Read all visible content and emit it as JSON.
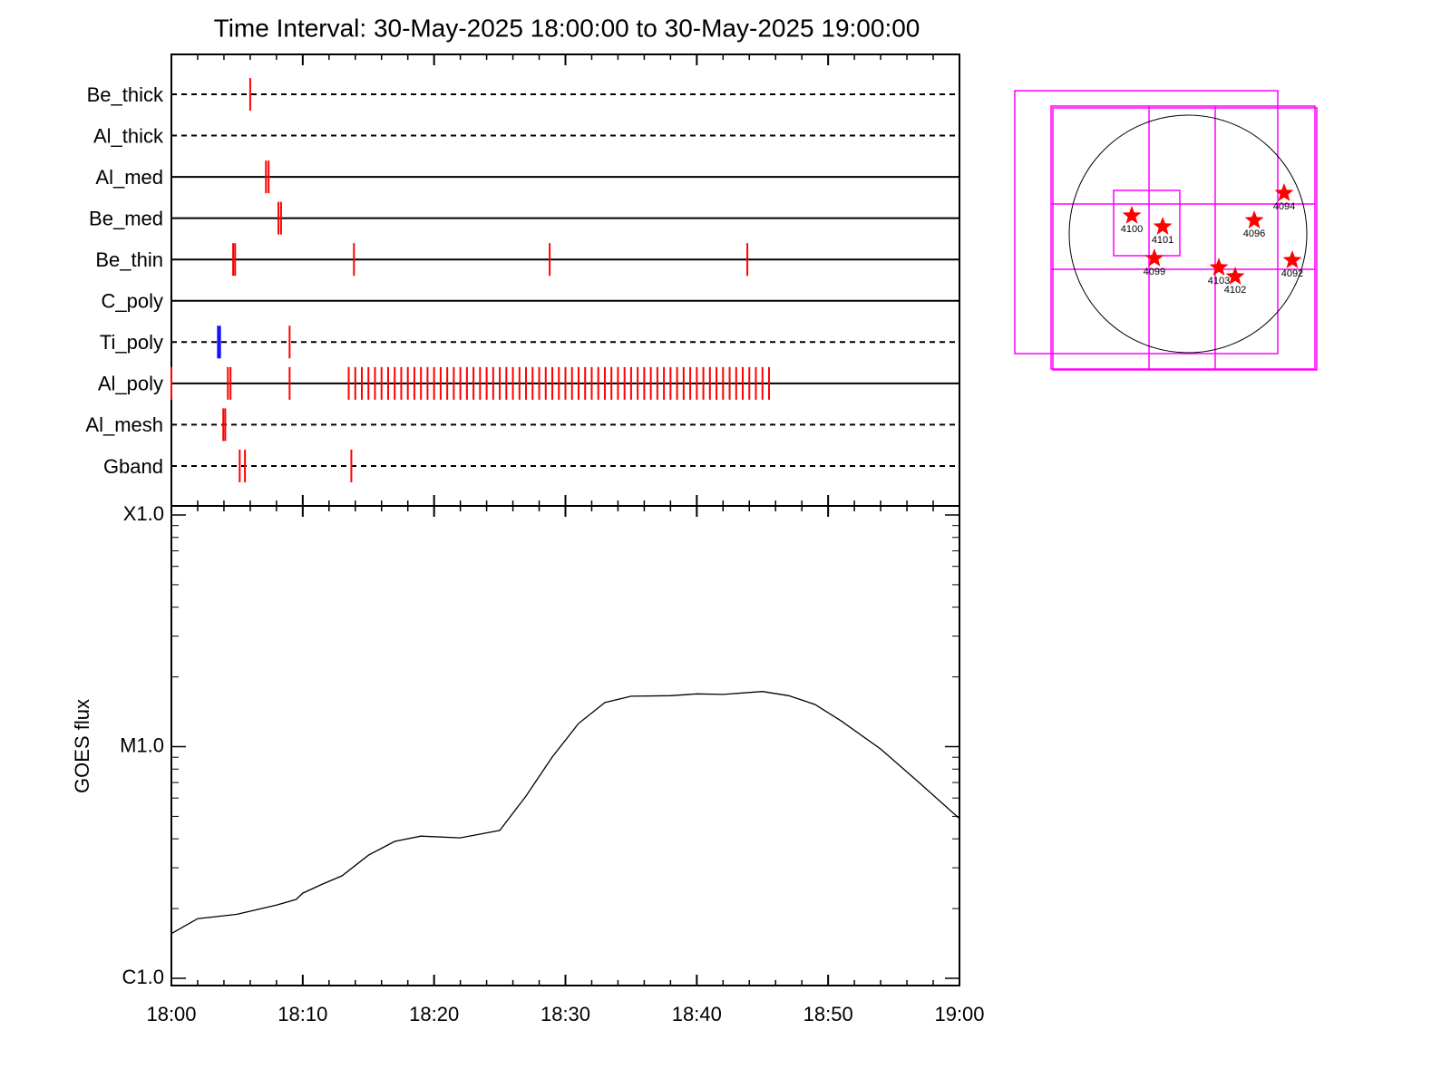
{
  "chart_data": [
    {
      "type": "timeline",
      "title": "Time Interval: 30-May-2025 18:00:00 to 30-May-2025 19:00:00",
      "xlim": [
        0,
        60
      ],
      "xticks": [
        0,
        10,
        20,
        30,
        40,
        50,
        60
      ],
      "xminorticks": [
        2,
        4,
        6,
        8,
        12,
        14,
        16,
        18,
        22,
        24,
        26,
        28,
        32,
        34,
        36,
        38,
        42,
        44,
        46,
        48,
        52,
        54,
        56,
        58
      ],
      "rows": [
        {
          "name": "Be_thick",
          "line": "dashed",
          "marks": [
            {
              "color": "#ff0000",
              "x": [
                6.0
              ]
            }
          ]
        },
        {
          "name": "Al_thick",
          "line": "dashed",
          "marks": []
        },
        {
          "name": "Al_med",
          "line": "solid",
          "marks": [
            {
              "color": "#ff0000",
              "x": [
                7.2,
                7.4
              ]
            }
          ]
        },
        {
          "name": "Be_med",
          "line": "solid",
          "marks": [
            {
              "color": "#ff0000",
              "x": [
                8.15,
                8.35
              ]
            }
          ]
        },
        {
          "name": "Be_thin",
          "line": "solid",
          "marks": [
            {
              "color": "#ff0000",
              "x": [
                4.7,
                4.85,
                13.9,
                28.8,
                43.85
              ]
            }
          ]
        },
        {
          "name": "C_poly",
          "line": "solid",
          "marks": []
        },
        {
          "name": "Ti_poly",
          "line": "dashed",
          "marks": [
            {
              "color": "#0000ff",
              "x": [
                3.55,
                3.7
              ]
            },
            {
              "color": "#ff0000",
              "x": [
                9.0
              ]
            }
          ]
        },
        {
          "name": "Al_poly",
          "line": "solid",
          "marks": [
            {
              "color": "#ff0000",
              "x": [
                0.0,
                4.3,
                4.5,
                9.0,
                13.5,
                14.0,
                14.5,
                15.0,
                15.5,
                16.0,
                16.5,
                17.0,
                17.5,
                18.0,
                18.5,
                19.0,
                19.5,
                20.0,
                20.5,
                21.0,
                21.5,
                22.0,
                22.5,
                23.0,
                23.5,
                24.0,
                24.5,
                25.0,
                25.5,
                26.0,
                26.5,
                27.0,
                27.5,
                28.0,
                28.5,
                29.0,
                29.5,
                30.0,
                30.5,
                31.0,
                31.5,
                32.0,
                32.5,
                33.0,
                33.5,
                34.0,
                34.5,
                35.0,
                35.5,
                36.0,
                36.5,
                37.0,
                37.5,
                38.0,
                38.5,
                39.0,
                39.5,
                40.0,
                40.5,
                41.0,
                41.5,
                42.0,
                42.5,
                43.0,
                43.5,
                44.0,
                44.5,
                45.0,
                45.5
              ]
            }
          ]
        },
        {
          "name": "Al_mesh",
          "line": "dashed",
          "marks": [
            {
              "color": "#ff0000",
              "x": [
                3.95,
                4.1
              ]
            }
          ]
        },
        {
          "name": "Gband",
          "line": "dashed",
          "marks": [
            {
              "color": "#ff0000",
              "x": [
                5.2,
                5.6,
                13.7
              ]
            }
          ]
        }
      ]
    },
    {
      "type": "line",
      "ylabel": "GOES flux",
      "log_scale": true,
      "xlim": [
        0,
        60
      ],
      "xticks": [
        {
          "value": 0,
          "label": "18:00"
        },
        {
          "value": 10,
          "label": "18:10"
        },
        {
          "value": 20,
          "label": "18:20"
        },
        {
          "value": 30,
          "label": "18:30"
        },
        {
          "value": 40,
          "label": "18:40"
        },
        {
          "value": 50,
          "label": "18:50"
        },
        {
          "value": 60,
          "label": "19:00"
        }
      ],
      "xminorticks": [
        2,
        4,
        6,
        8,
        12,
        14,
        16,
        18,
        22,
        24,
        26,
        28,
        32,
        34,
        36,
        38,
        42,
        44,
        46,
        48,
        52,
        54,
        56,
        58
      ],
      "ylim": [
        1e-06,
        0.0001
      ],
      "yticks": [
        {
          "value": 1e-06,
          "label": "C1.0"
        },
        {
          "value": 1e-05,
          "label": "M1.0"
        },
        {
          "value": 0.0001,
          "label": "X1.0"
        }
      ],
      "yminorticks": [
        2e-06,
        3e-06,
        4e-06,
        5e-06,
        6e-06,
        7e-06,
        8e-06,
        9e-06,
        2e-05,
        3e-05,
        4e-05,
        5e-05,
        6e-05,
        7e-05,
        8e-05,
        9e-05
      ],
      "x": [
        0,
        2,
        5,
        8,
        9.5,
        10,
        11.5,
        13,
        15,
        17,
        19,
        22,
        25,
        27,
        29,
        31,
        33,
        35,
        38,
        40,
        42,
        45,
        47,
        49,
        51,
        54,
        57,
        60
      ],
      "series": [
        {
          "color": "#000000",
          "values": [
            1.56e-06,
            1.81e-06,
            1.89e-06,
            2.07e-06,
            2.19e-06,
            2.33e-06,
            2.55e-06,
            2.77e-06,
            3.4e-06,
            3.9e-06,
            4.11e-06,
            4.04e-06,
            4.35e-06,
            6.12e-06,
            9.02e-06,
            1.26e-05,
            1.55e-05,
            1.65e-05,
            1.66e-05,
            1.69e-05,
            1.68e-05,
            1.73e-05,
            1.66e-05,
            1.52e-05,
            1.29e-05,
            9.77e-06,
            6.94e-06,
            4.89e-06
          ]
        }
      ]
    },
    {
      "type": "scatter",
      "xlim": [
        -947,
        947
      ],
      "ylim": [
        -947,
        947
      ],
      "color": "#ff0000",
      "labels": [
        "4100",
        "4101",
        "4099",
        "4096",
        "4094",
        "4092",
        "4103",
        "4102"
      ],
      "x": [
        -448,
        -202,
        -268,
        528,
        766,
        831,
        246,
        376
      ],
      "y": [
        145,
        58,
        -195,
        108,
        325,
        -210,
        -268,
        -340
      ]
    }
  ]
}
